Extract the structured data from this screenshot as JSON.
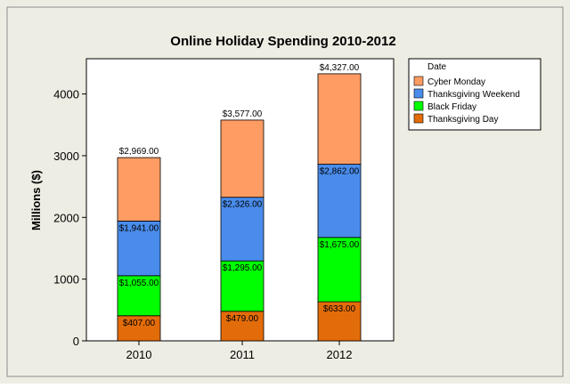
{
  "chart_data": {
    "type": "bar",
    "stacked": true,
    "title": "Online Holiday Spending 2010-2012",
    "xlabel": "",
    "ylabel": "Millions ($)",
    "categories": [
      "2010",
      "2011",
      "2012"
    ],
    "ylim": [
      0,
      4600
    ],
    "yticks": [
      0,
      1000,
      2000,
      3000,
      4000
    ],
    "grid": false,
    "legend": {
      "title": "Date",
      "placement": "right",
      "entries": [
        "Cyber Monday",
        "Thanksgiving Weekend",
        "Black Friday",
        "Thanksgiving Day"
      ]
    },
    "series": [
      {
        "name": "Thanksgiving Day",
        "color": "#E36C0A",
        "values": [
          407,
          479,
          633
        ]
      },
      {
        "name": "Black Friday",
        "color": "#00FF00",
        "values": [
          648,
          816,
          1042
        ]
      },
      {
        "name": "Thanksgiving Weekend",
        "color": "#4A8CEB",
        "values": [
          886,
          1031,
          1187
        ]
      },
      {
        "name": "Cyber Monday",
        "color": "#FF9C63",
        "values": [
          1028,
          1251,
          1465
        ]
      }
    ],
    "data_labels": [
      [
        "$407.00",
        "$1,055.00",
        "$1,941.00",
        "$2,969.00"
      ],
      [
        "$479.00",
        "$1,295.00",
        "$2,326.00",
        "$3,577.00"
      ],
      [
        "$633.00",
        "$1,675.00",
        "$2,862.00",
        "$4,327.00"
      ]
    ],
    "cumulative_values": [
      [
        407,
        1055,
        1941,
        2969
      ],
      [
        479,
        1295,
        2326,
        3577
      ],
      [
        633,
        1675,
        2862,
        4327
      ]
    ],
    "colors": {
      "outer_background": "#EEEDE3",
      "plot_background": "#FFFFFF",
      "frame": "#8C8C8C"
    }
  }
}
